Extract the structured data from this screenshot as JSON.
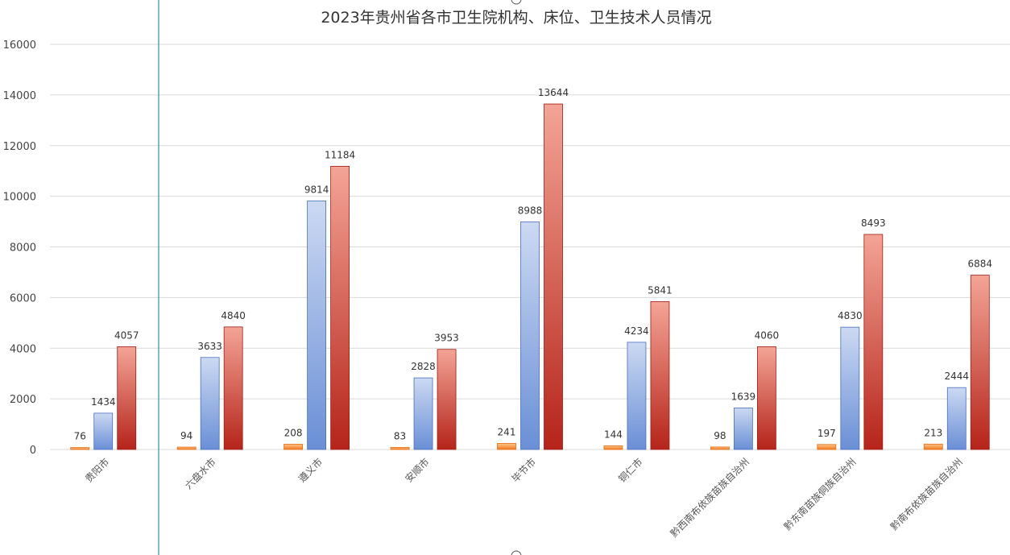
{
  "chart_data": {
    "type": "bar",
    "title": "2023年贵州省各市卫生院机构、床位、卫生技术人员情况",
    "xlabel": "",
    "ylabel": "",
    "ylim": [
      0,
      16000
    ],
    "yticks": [
      0,
      2000,
      4000,
      6000,
      8000,
      10000,
      12000,
      14000,
      16000
    ],
    "grid": true,
    "legend": "none",
    "categories": [
      "贵阳市",
      "六盘水市",
      "遵义市",
      "安顺市",
      "毕节市",
      "铜仁市",
      "黔西南布依族苗族自治州",
      "黔东南苗族侗族自治州",
      "黔南布依族苗族自治州"
    ],
    "series": [
      {
        "values": [
          76,
          94,
          208,
          83,
          241,
          144,
          98,
          197,
          213
        ],
        "color_top": "#fdc48a",
        "color_bottom": "#f07b20",
        "border": "#e86b10"
      },
      {
        "values": [
          1434,
          3633,
          9814,
          2828,
          8988,
          4234,
          1639,
          4830,
          2444
        ],
        "color_top": "#ccd9f2",
        "color_bottom": "#6a8fd6",
        "border": "#4a6fbf"
      },
      {
        "values": [
          4057,
          4840,
          11184,
          3953,
          13644,
          5841,
          4060,
          8493,
          6884
        ],
        "color_top": "#f3a496",
        "color_bottom": "#b5241a",
        "border": "#a01c12"
      }
    ]
  }
}
